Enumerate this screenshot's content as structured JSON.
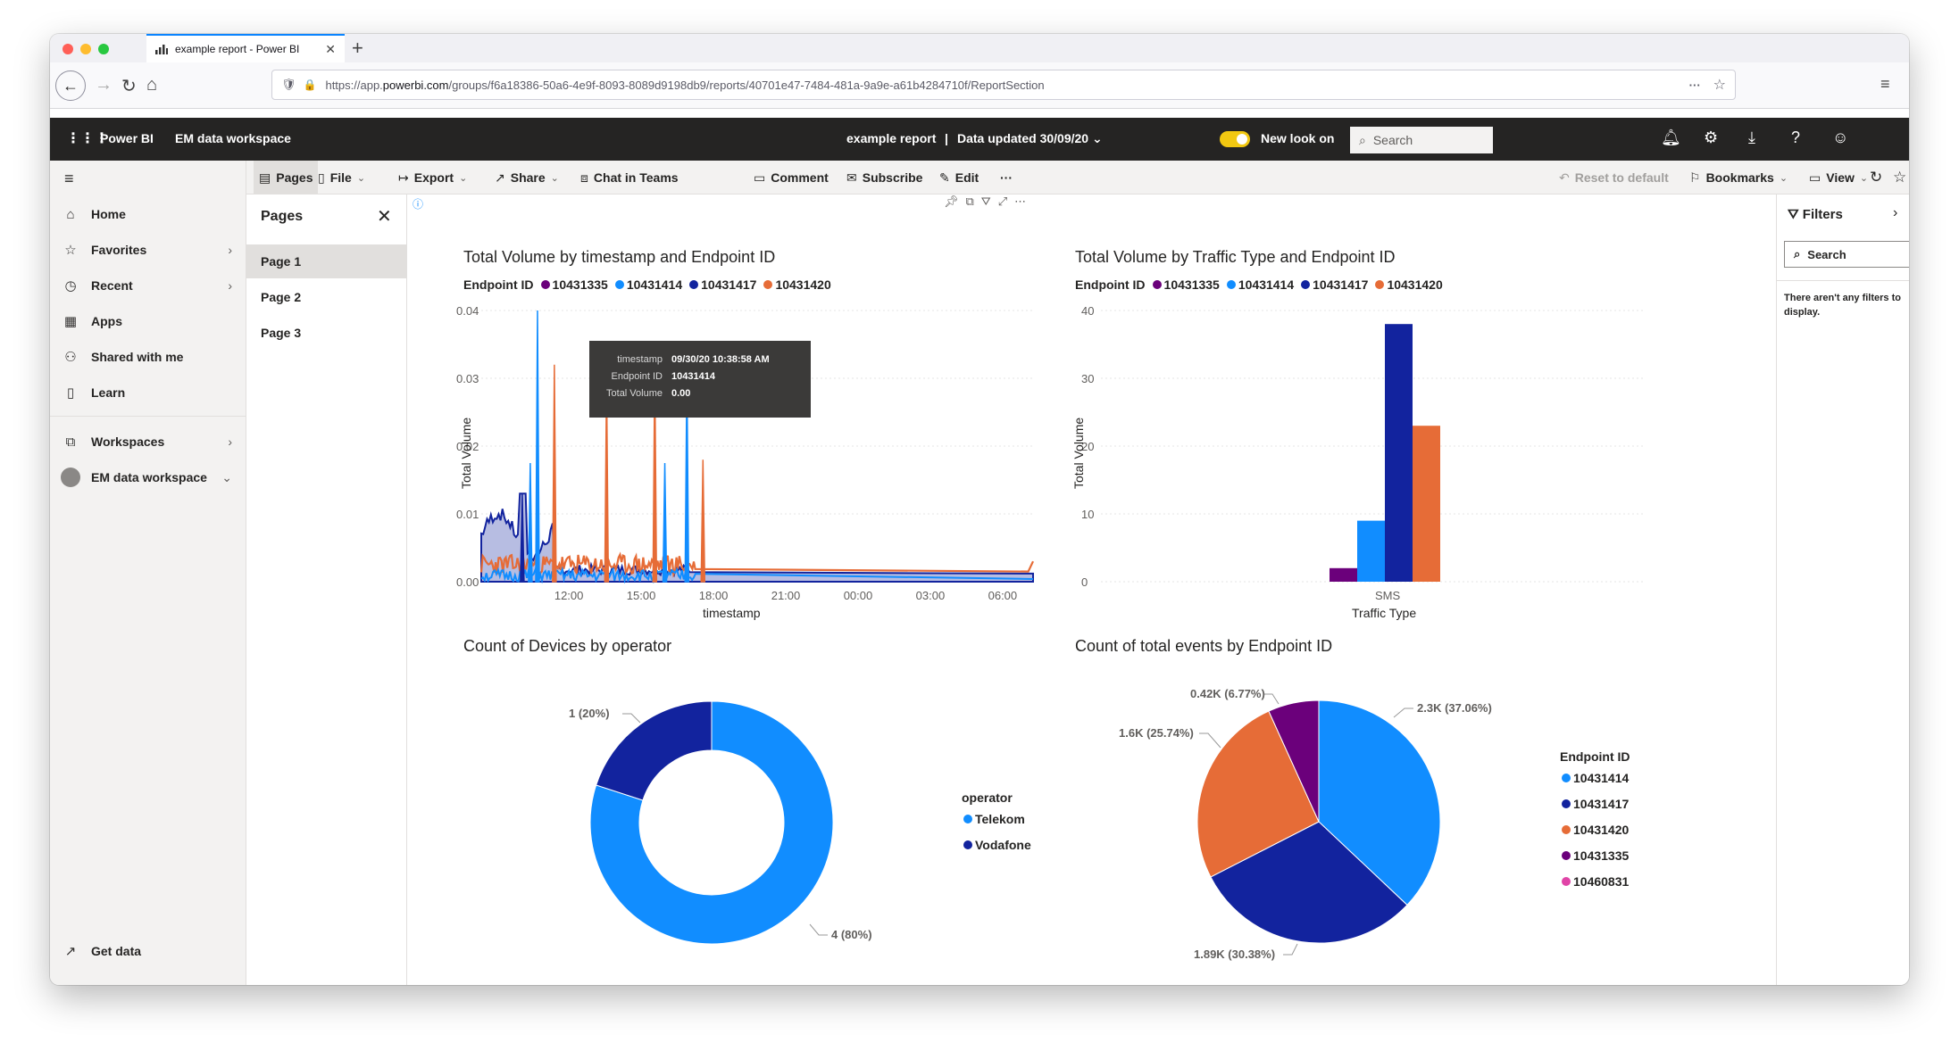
{
  "browser": {
    "tab_title": "example report - Power BI",
    "new_tab": "+",
    "url_prefix": "https://app.",
    "url_domain": "powerbi.com",
    "url_path": "/groups/f6a18386-50a6-4e9f-8093-8089d9198db9/reports/40701e47-7484-481a-9a9e-a61b4284710f/ReportSection",
    "more": "···"
  },
  "header": {
    "app": "Power BI",
    "workspace": "EM data workspace",
    "report": "example report",
    "separator": "|",
    "updated": "Data updated 30/09/20",
    "new_look": "New look on",
    "search": "Search"
  },
  "leftnav": {
    "items": [
      {
        "label": "Home"
      },
      {
        "label": "Favorites"
      },
      {
        "label": "Recent"
      },
      {
        "label": "Apps"
      },
      {
        "label": "Shared with me"
      },
      {
        "label": "Learn"
      },
      {
        "label": "Workspaces"
      },
      {
        "label": "EM data workspace"
      }
    ],
    "get_data": "Get data"
  },
  "pages": {
    "title": "Pages",
    "items": [
      {
        "label": "Page 1"
      },
      {
        "label": "Page 2"
      },
      {
        "label": "Page 3"
      }
    ]
  },
  "actionbar": {
    "pages": "Pages",
    "file": "File",
    "export": "Export",
    "share": "Share",
    "teams": "Chat in Teams",
    "comment": "Comment",
    "subscribe": "Subscribe",
    "edit": "Edit",
    "more": "···",
    "reset": "Reset to default",
    "bookmarks": "Bookmarks",
    "view": "View"
  },
  "filters": {
    "title": "Filters",
    "search": "Search",
    "empty": "There aren't any filters to display."
  },
  "colors": {
    "c10431335": "#6b007b",
    "c10431414": "#118dff",
    "c10431417": "#12239e",
    "c10431420": "#e66c37",
    "c10460831": "#e044a7"
  },
  "tooltip": {
    "timestamp_label": "timestamp",
    "timestamp": "09/30/20 10:38:58 AM",
    "endpoint_label": "Endpoint ID",
    "endpoint": "10431414",
    "volume_label": "Total Volume",
    "volume": "0.00"
  },
  "chart_data": [
    {
      "type": "area",
      "title": "Total Volume by timestamp and Endpoint ID",
      "legend_title": "Endpoint ID",
      "xlabel": "timestamp",
      "ylabel": "Total Volume",
      "ylim": [
        0,
        0.04
      ],
      "yticks": [
        "0.00",
        "0.01",
        "0.02",
        "0.03",
        "0.04"
      ],
      "xticks": [
        "12:00",
        "15:00",
        "18:00",
        "21:00",
        "00:00",
        "03:00",
        "06:00"
      ],
      "series": [
        {
          "name": "10431335",
          "peaks": []
        },
        {
          "name": "10431414",
          "peaks": [
            {
              "x": "10:38",
              "y": 0.04
            },
            {
              "x": "10:20",
              "y": 0.0175
            },
            {
              "x": "15:55",
              "y": 0.0175
            },
            {
              "x": "16:50",
              "y": 0.031
            }
          ]
        },
        {
          "name": "10431417",
          "peaks": [
            {
              "x": "10:00",
              "y": 0.013
            }
          ]
        },
        {
          "name": "10431420",
          "peaks": [
            {
              "x": "11:20",
              "y": 0.032
            },
            {
              "x": "13:30",
              "y": 0.03
            },
            {
              "x": "15:30",
              "y": 0.032
            },
            {
              "x": "17:30",
              "y": 0.018
            }
          ]
        }
      ],
      "legend_placement": "top-left"
    },
    {
      "type": "bar",
      "title": "Total Volume by Traffic Type and Endpoint ID",
      "legend_title": "Endpoint ID",
      "xlabel": "Traffic Type",
      "ylabel": "Total Volume",
      "ylim": [
        0,
        40
      ],
      "yticks": [
        "0",
        "10",
        "20",
        "30",
        "40"
      ],
      "categories": [
        "SMS"
      ],
      "series": [
        {
          "name": "10431335",
          "values": [
            2
          ]
        },
        {
          "name": "10431414",
          "values": [
            9
          ]
        },
        {
          "name": "10431417",
          "values": [
            38
          ]
        },
        {
          "name": "10431420",
          "values": [
            23
          ]
        }
      ],
      "legend_placement": "top-left"
    },
    {
      "type": "pie",
      "title": "Count of Devices by operator",
      "legend_title": "operator",
      "slices": [
        {
          "name": "Telekom",
          "value": 4,
          "label": "4 (80%)"
        },
        {
          "name": "Vodafone",
          "value": 1,
          "label": "1 (20%)"
        }
      ],
      "donut": true,
      "legend_placement": "right"
    },
    {
      "type": "pie",
      "title": "Count of total events by Endpoint ID",
      "legend_title": "Endpoint ID",
      "slices": [
        {
          "name": "10431414",
          "value": 2300,
          "label": "2.3K (37.06%)"
        },
        {
          "name": "10431417",
          "value": 1890,
          "label": "1.89K (30.38%)"
        },
        {
          "name": "10431420",
          "value": 1600,
          "label": "1.6K (25.74%)"
        },
        {
          "name": "10431335",
          "value": 420,
          "label": "0.42K (6.77%)"
        },
        {
          "name": "10460831",
          "value": 0,
          "label": ""
        }
      ],
      "legend_placement": "right"
    }
  ]
}
